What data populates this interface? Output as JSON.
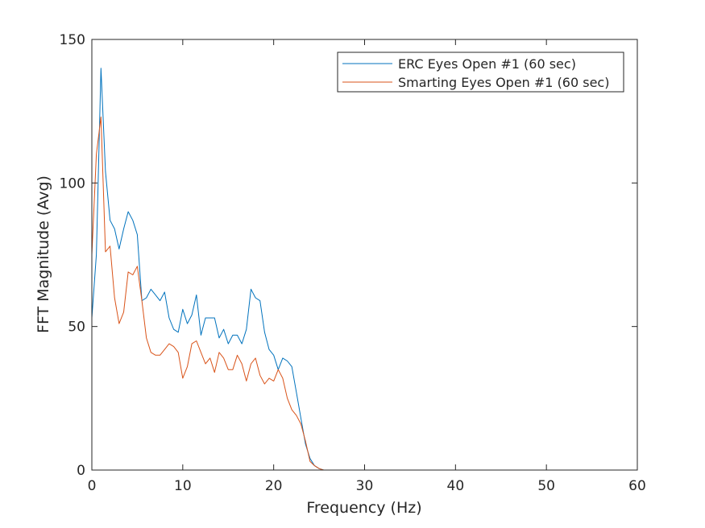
{
  "chart_data": {
    "type": "line",
    "title": "",
    "xlabel": "Frequency (Hz)",
    "ylabel": "FFT Magnitude (Avg)",
    "xlim": [
      0,
      60
    ],
    "ylim": [
      0,
      150
    ],
    "xticks": [
      "0",
      "10",
      "20",
      "30",
      "40",
      "50",
      "60"
    ],
    "yticks": [
      "0",
      "50",
      "100",
      "150"
    ],
    "grid": false,
    "legend_position": "top-right",
    "series": [
      {
        "name": "ERC Eyes Open #1 (60 sec)",
        "color": "#0072BD",
        "x": [
          0,
          0.5,
          1,
          1.5,
          2,
          2.5,
          3,
          3.5,
          4,
          4.5,
          5,
          5.5,
          6,
          6.5,
          7,
          7.5,
          8,
          8.5,
          9,
          9.5,
          10,
          10.5,
          11,
          11.5,
          12,
          12.5,
          13,
          13.5,
          14,
          14.5,
          15,
          15.5,
          16,
          16.5,
          17,
          17.5,
          18,
          18.5,
          19,
          19.5,
          20,
          20.5,
          21,
          21.5,
          22,
          22.5,
          23,
          23.5,
          24,
          24.5,
          25,
          25.5,
          30,
          40,
          50,
          59.5
        ],
        "y": [
          53,
          75,
          140,
          104,
          87,
          84,
          77,
          84,
          90,
          87,
          82,
          59,
          60,
          63,
          61,
          59,
          62,
          53,
          49,
          48,
          56,
          51,
          54,
          61,
          47,
          53,
          53,
          53,
          46,
          49,
          44,
          47,
          47,
          44,
          49,
          63,
          60,
          59,
          48,
          42,
          40,
          35,
          39,
          38,
          36,
          27,
          18,
          9,
          4,
          1.5,
          0.5,
          0,
          0,
          0,
          0,
          0
        ]
      },
      {
        "name": "Smarting Eyes Open #1 (60 sec)",
        "color": "#D95319",
        "x": [
          0,
          0.5,
          1,
          1.5,
          2,
          2.5,
          3,
          3.5,
          4,
          4.5,
          5,
          5.5,
          6,
          6.5,
          7,
          7.5,
          8,
          8.5,
          9,
          9.5,
          10,
          10.5,
          11,
          11.5,
          12,
          12.5,
          13,
          13.5,
          14,
          14.5,
          15,
          15.5,
          16,
          16.5,
          17,
          17.5,
          18,
          18.5,
          19,
          19.5,
          20,
          20.5,
          21,
          21.5,
          22,
          22.5,
          23,
          23.5,
          24,
          24.5,
          25,
          25.5,
          30,
          40,
          50,
          59.5
        ],
        "y": [
          75,
          110,
          123,
          76,
          78,
          60,
          51,
          55,
          69,
          68,
          71,
          59,
          46,
          41,
          40,
          40,
          42,
          44,
          43,
          41,
          32,
          36,
          44,
          45,
          41,
          37,
          39,
          34,
          41,
          39,
          35,
          35,
          40,
          37,
          31,
          37,
          39,
          33,
          30,
          32,
          31,
          35,
          32,
          25,
          21,
          19,
          16,
          10,
          3,
          1.5,
          0.5,
          0,
          0,
          0,
          0,
          0
        ]
      }
    ]
  }
}
